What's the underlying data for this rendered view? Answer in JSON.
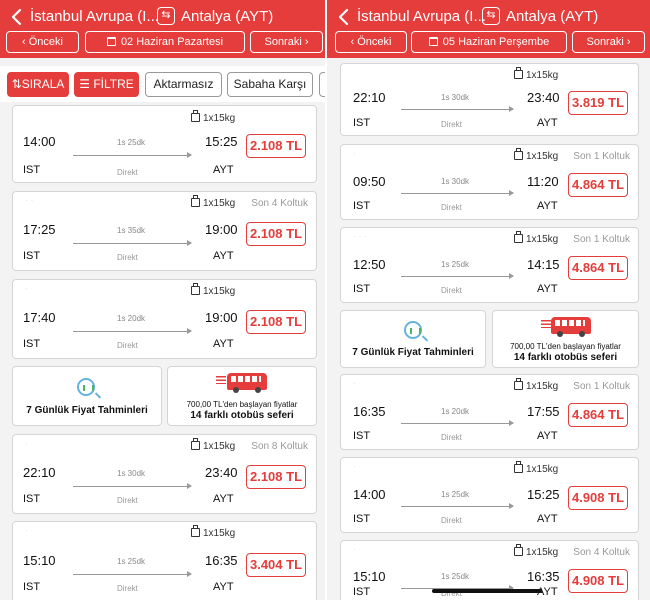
{
  "colors": {
    "brand_red": "#e43d3b",
    "card_border": "#d5d5d5",
    "muted": "#999999"
  },
  "left": {
    "header": {
      "origin": "İstanbul Avrupa (I...",
      "destination": "Antalya (AYT)",
      "swap_icon": "swap-icon",
      "back_icon": "chevron-left-icon"
    },
    "date_bar": {
      "prev": "‹ Önceki",
      "date": "02 Haziran Pazartesi",
      "next": "Sonraki ›"
    },
    "chips": {
      "sort": "SIRALA",
      "filter": "FİLTRE",
      "direct": "Aktarmasız",
      "morning": "Sabaha Karşı"
    },
    "trips": [
      {
        "luggage": "1x15kg",
        "seats": "",
        "dep": "14:00",
        "arr": "15:25",
        "duration": "1s 25dk",
        "from": "IST",
        "to": "AYT",
        "type": "Direkt",
        "price": "2.108 TL"
      },
      {
        "luggage": "1x15kg",
        "seats": "Son 4 Koltuk",
        "dep": "17:25",
        "arr": "19:00",
        "duration": "1s 35dk",
        "from": "IST",
        "to": "AYT",
        "type": "Direkt",
        "price": "2.108 TL"
      },
      {
        "luggage": "1x15kg",
        "seats": "",
        "dep": "17:40",
        "arr": "19:00",
        "duration": "1s 20dk",
        "from": "IST",
        "to": "AYT",
        "type": "Direkt",
        "price": "2.108 TL"
      },
      {
        "luggage": "1x15kg",
        "seats": "Son 8 Koltuk",
        "dep": "22:10",
        "arr": "23:40",
        "duration": "1s 30dk",
        "from": "IST",
        "to": "AYT",
        "type": "Direkt",
        "price": "2.108 TL"
      },
      {
        "luggage": "1x15kg",
        "seats": "",
        "dep": "15:10",
        "arr": "16:35",
        "duration": "1s 25dk",
        "from": "IST",
        "to": "AYT",
        "type": "Direkt",
        "price": "3.404 TL"
      }
    ],
    "promo": {
      "forecast": "7 Günlük Fiyat Tahminleri",
      "bus_line1": "700,00 TL'den başlayan fiyatlar",
      "bus_line2": "14 farklı otobüs seferi"
    }
  },
  "right": {
    "header": {
      "origin": "İstanbul Avrupa (I...",
      "destination": "Antalya (AYT)",
      "swap_icon": "swap-icon",
      "back_icon": "chevron-left-icon"
    },
    "date_bar": {
      "prev": "‹ Önceki",
      "date": "05 Haziran Perşembe",
      "next": "Sonraki ›"
    },
    "trips": [
      {
        "luggage": "1x15kg",
        "seats": "",
        "dep": "22:10",
        "arr": "23:40",
        "duration": "1s 30dk",
        "from": "IST",
        "to": "AYT",
        "type": "Direkt",
        "price": "3.819 TL"
      },
      {
        "luggage": "1x15kg",
        "seats": "Son 1 Koltuk",
        "dep": "09:50",
        "arr": "11:20",
        "duration": "1s 30dk",
        "from": "IST",
        "to": "AYT",
        "type": "Direkt",
        "price": "4.864 TL"
      },
      {
        "luggage": "1x15kg",
        "seats": "Son 1 Koltuk",
        "dep": "12:50",
        "arr": "14:15",
        "duration": "1s 25dk",
        "from": "IST",
        "to": "AYT",
        "type": "Direkt",
        "price": "4.864 TL"
      },
      {
        "luggage": "1x15kg",
        "seats": "Son 1 Koltuk",
        "dep": "16:35",
        "arr": "17:55",
        "duration": "1s 20dk",
        "from": "IST",
        "to": "AYT",
        "type": "Direkt",
        "price": "4.864 TL"
      },
      {
        "luggage": "1x15kg",
        "seats": "",
        "dep": "14:00",
        "arr": "15:25",
        "duration": "1s 25dk",
        "from": "IST",
        "to": "AYT",
        "type": "Direkt",
        "price": "4.908 TL"
      },
      {
        "luggage": "1x15kg",
        "seats": "Son 4 Koltuk",
        "dep": "15:10",
        "arr": "16:35",
        "duration": "1s 25dk",
        "from": "IST",
        "to": "AYT",
        "type": "Direkt",
        "price": "4.908 TL"
      }
    ],
    "promo": {
      "forecast": "7 Günlük Fiyat Tahminleri",
      "bus_line1": "700,00 TL'den başlayan fiyatlar",
      "bus_line2": "14 farklı otobüs seferi"
    }
  }
}
